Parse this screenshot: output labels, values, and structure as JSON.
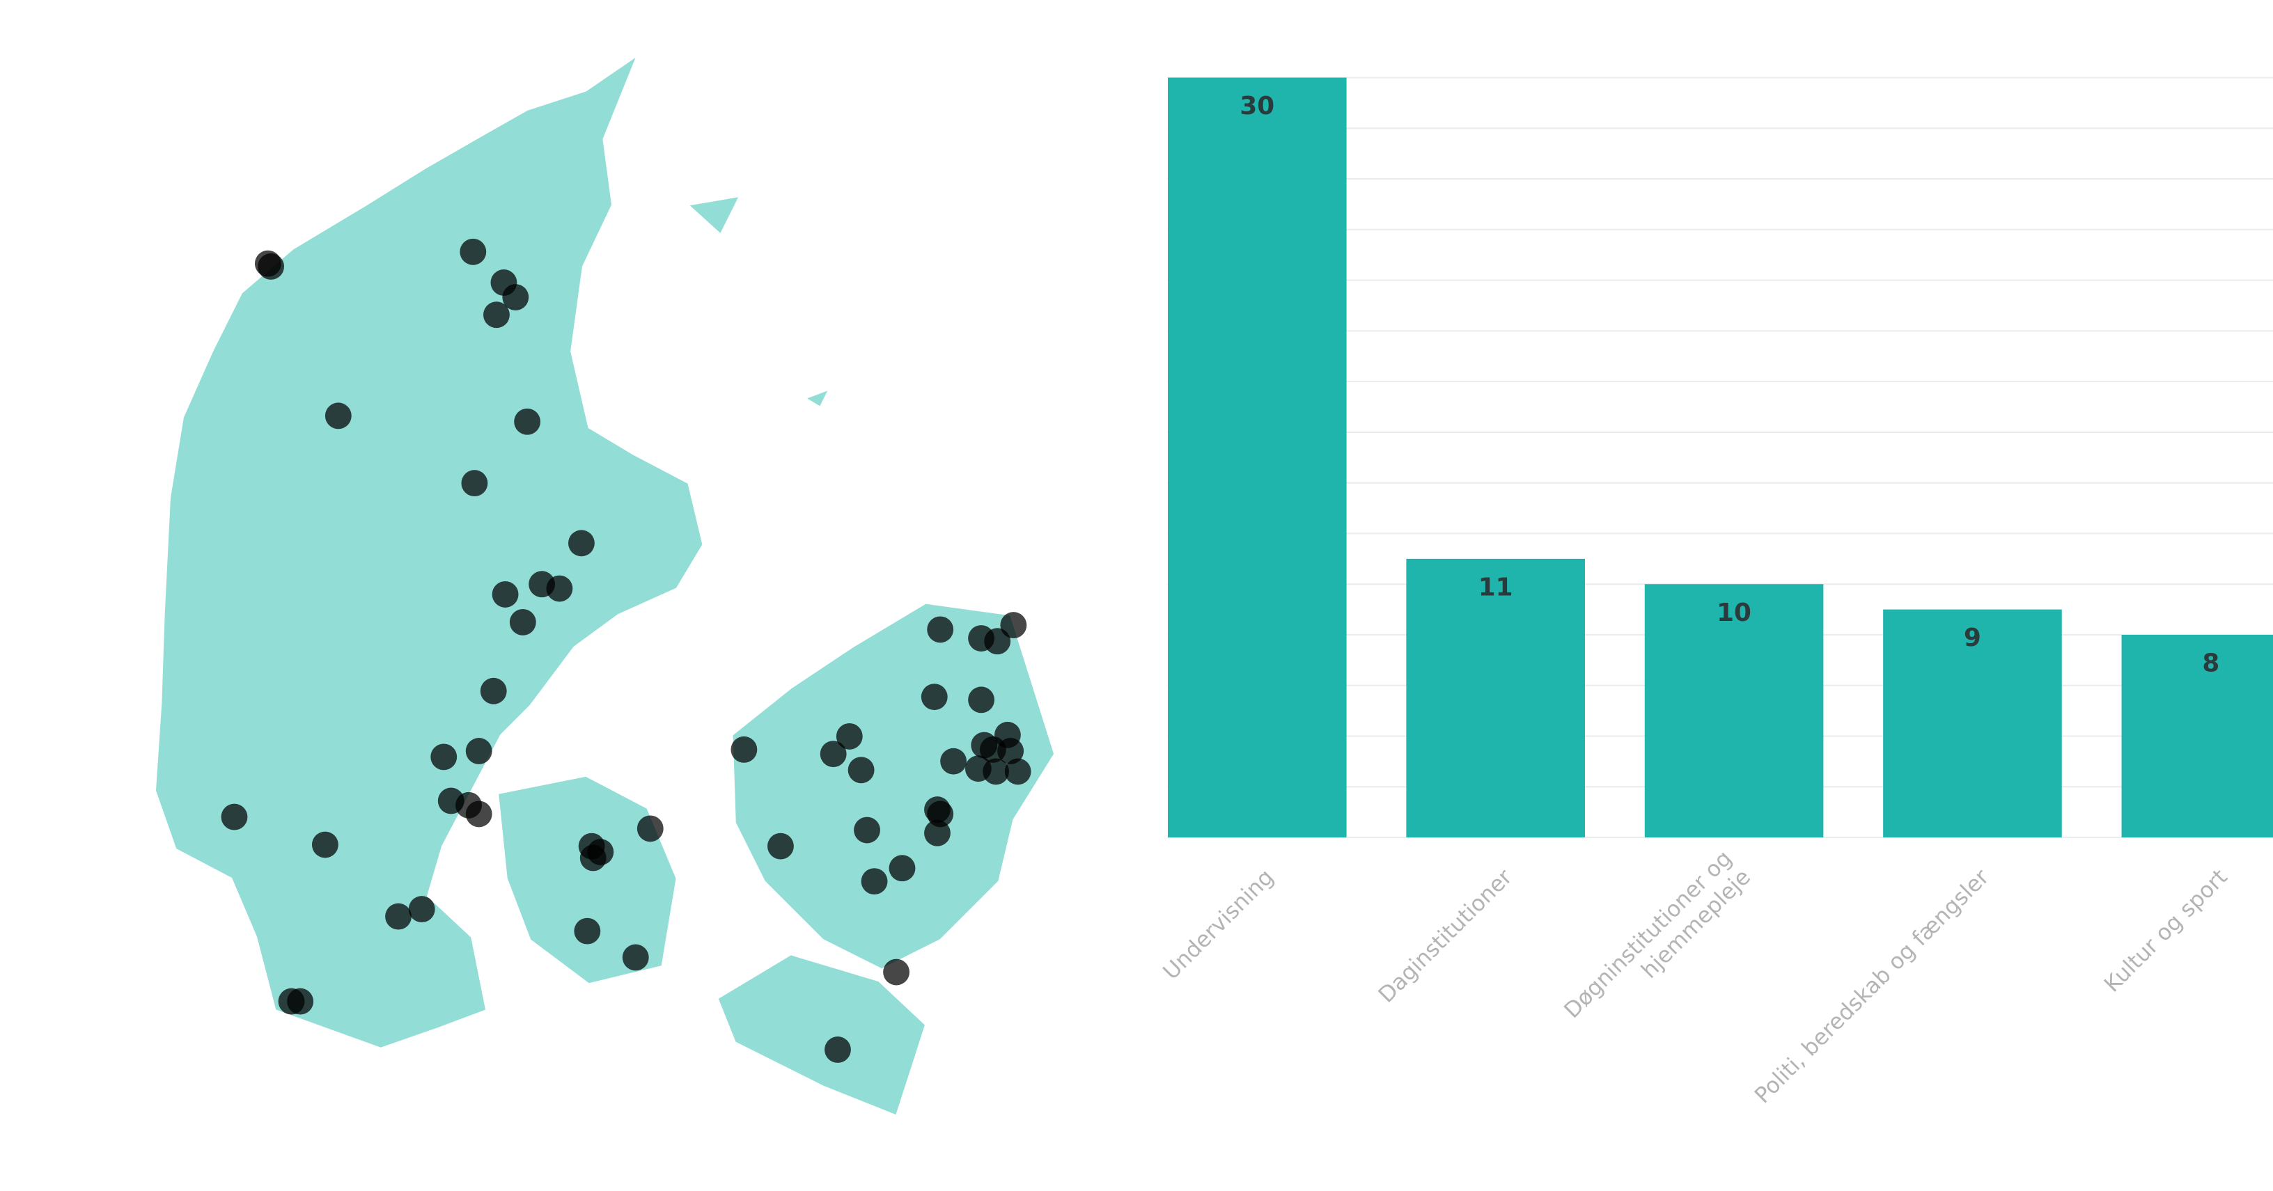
{
  "chart_data": {
    "type": "bar",
    "categories": [
      "Undervisning",
      "Daginstitutioner",
      "Døgninstitutioner og\nhjemmepleje",
      "Politi, beredskab og fængsler",
      "Kultur og sport"
    ],
    "values": [
      30,
      11,
      10,
      9,
      8
    ],
    "color": "#1fb5ad",
    "ylim": [
      0,
      30
    ],
    "yticks": [
      0,
      2,
      4,
      6,
      8,
      10,
      12,
      14,
      16,
      18,
      20,
      22,
      24,
      26,
      28,
      30
    ],
    "grid": true
  }
}
